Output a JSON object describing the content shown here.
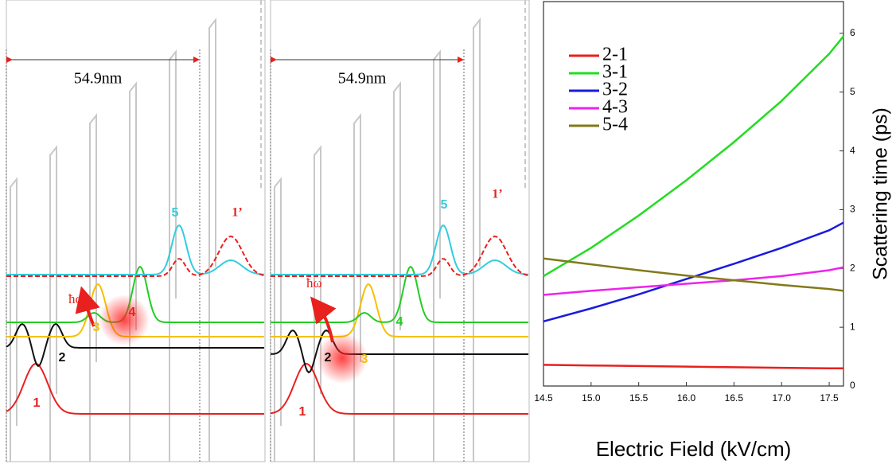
{
  "panels": [
    {
      "dimension": "54.9nm",
      "levels": [
        "1",
        "2",
        "3",
        "4",
        "5",
        "1’"
      ],
      "photon": "ħω"
    },
    {
      "dimension": "54.9nm",
      "levels": [
        "1",
        "2",
        "3",
        "4",
        "5",
        "1’"
      ],
      "photon": "ħω"
    }
  ],
  "chart_data": {
    "type": "line",
    "x_label": "Electric Field (kV/cm)",
    "y_label": "Scattering time (ps)",
    "x": [
      14.5,
      15.0,
      15.5,
      16.0,
      16.5,
      17.0,
      17.5,
      17.65
    ],
    "xlim": [
      14.5,
      17.65
    ],
    "xticks": [
      14.5,
      {
        "value": 15,
        "label": "15.0"
      },
      15.5,
      {
        "value": 16,
        "label": "16.0"
      },
      16.5,
      {
        "value": 17,
        "label": "17.0"
      },
      17.5
    ],
    "ylim": [
      0,
      6.54
    ],
    "yticks": [
      0,
      1,
      2,
      3,
      4,
      5,
      6
    ],
    "y_axis_side": "right",
    "legend": "upper left",
    "series": [
      {
        "name": "2-1",
        "color": "#e8201e",
        "values": [
          0.36,
          0.35,
          0.34,
          0.33,
          0.32,
          0.31,
          0.3,
          0.3
        ]
      },
      {
        "name": "3-1",
        "color": "#22dd22",
        "values": [
          1.87,
          2.35,
          2.9,
          3.5,
          4.15,
          4.85,
          5.65,
          5.95
        ]
      },
      {
        "name": "3-2",
        "color": "#1a1add",
        "values": [
          1.1,
          1.32,
          1.56,
          1.82,
          2.08,
          2.35,
          2.65,
          2.78
        ]
      },
      {
        "name": "4-3",
        "color": "#ee22ee",
        "values": [
          1.55,
          1.62,
          1.68,
          1.74,
          1.8,
          1.87,
          1.97,
          2.02
        ]
      },
      {
        "name": "5-4",
        "color": "#807a1a",
        "values": [
          2.17,
          2.07,
          1.97,
          1.88,
          1.8,
          1.72,
          1.65,
          1.62
        ]
      }
    ]
  }
}
